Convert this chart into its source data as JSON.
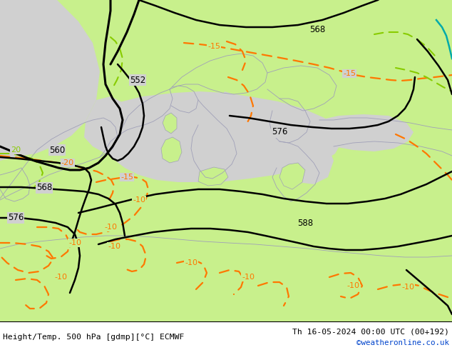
{
  "bottom_left_text": "Height/Temp. 500 hPa [gdmp][°C] ECMWF",
  "bottom_right_text": "Th 16-05-2024 00:00 UTC (00+192)",
  "watermark": "©weatheronline.co.uk",
  "bg_land_color": "#c8f08c",
  "bg_sea_color": "#d0d0d0",
  "contour_black_color": "#000000",
  "contour_orange_color": "#ff7700",
  "contour_green_color": "#88cc00",
  "contour_teal_color": "#00aaaa",
  "border_color": "#a0a0b8",
  "figwidth": 6.34,
  "figheight": 4.9,
  "dpi": 100
}
